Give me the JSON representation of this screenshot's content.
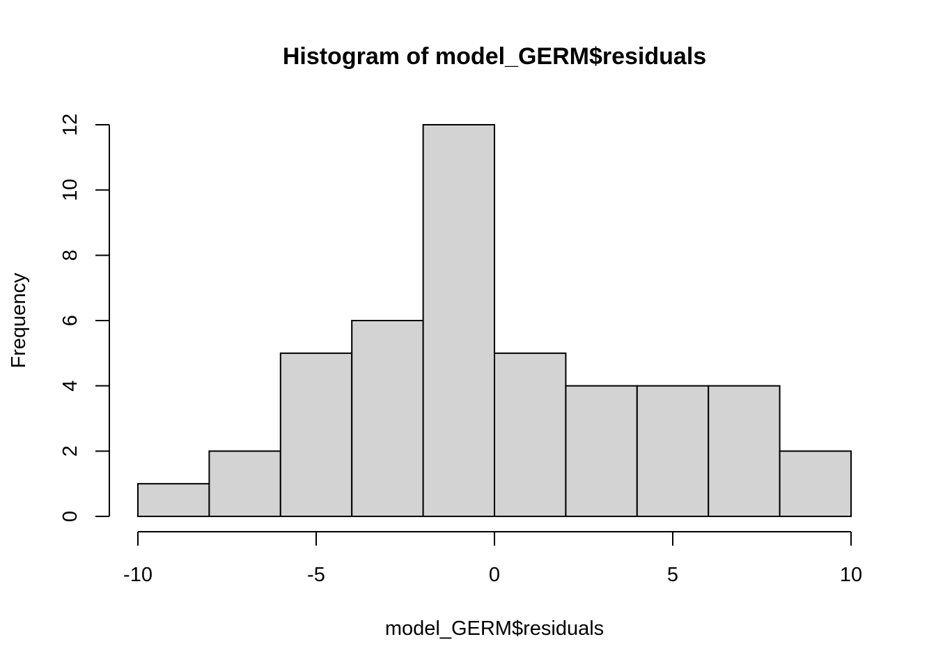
{
  "chart_data": {
    "type": "bar",
    "title": "Histogram of model_GERM$residuals",
    "xlabel": "model_GERM$residuals",
    "ylabel": "Frequency",
    "bin_edges": [
      -10,
      -8,
      -6,
      -4,
      -2,
      0,
      2,
      4,
      6,
      8,
      10
    ],
    "values": [
      1,
      2,
      5,
      6,
      12,
      5,
      4,
      4,
      4,
      2
    ],
    "xlim": [
      -10,
      10
    ],
    "ylim": [
      0,
      12
    ],
    "x_ticks": [
      -10,
      -5,
      0,
      5,
      10
    ],
    "x_tick_labels": [
      "-10",
      "-5",
      "0",
      "5",
      "10"
    ],
    "y_ticks": [
      0,
      2,
      4,
      6,
      8,
      10,
      12
    ],
    "y_tick_labels": [
      "0",
      "2",
      "4",
      "6",
      "8",
      "10",
      "12"
    ],
    "grid": false,
    "bar_color": "#d3d3d3",
    "edge_color": "#000000"
  }
}
